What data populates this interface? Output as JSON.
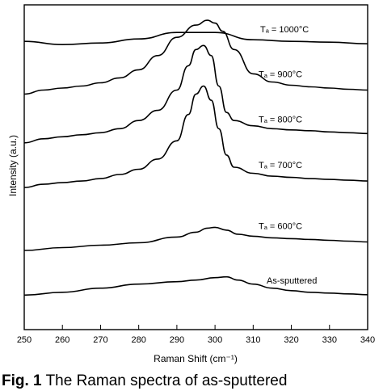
{
  "chart_data": {
    "type": "line",
    "xlabel": "Raman Shift (cm⁻¹)",
    "ylabel": "Intensity (a.u.)",
    "xlim": [
      250,
      340
    ],
    "xticks": [
      250,
      260,
      270,
      280,
      290,
      300,
      310,
      320,
      330,
      340
    ],
    "grid": false,
    "series": [
      {
        "name": "Tₐ = 1000°C",
        "x": [
          250,
          260,
          270,
          280,
          290,
          300,
          310,
          320,
          330,
          340
        ],
        "y": [
          7.7,
          7.62,
          7.66,
          7.76,
          7.92,
          7.92,
          7.74,
          7.7,
          7.68,
          7.64
        ]
      },
      {
        "name": "Tₐ = 900°C",
        "x": [
          250,
          255,
          260,
          265,
          270,
          275,
          280,
          285,
          290,
          295,
          298,
          300,
          302,
          305,
          310,
          315,
          320,
          325,
          330,
          335,
          340
        ],
        "y": [
          6.4,
          6.5,
          6.55,
          6.6,
          6.68,
          6.8,
          7.0,
          7.35,
          7.8,
          8.1,
          8.22,
          8.15,
          7.95,
          7.5,
          6.9,
          6.7,
          6.62,
          6.58,
          6.55,
          6.52,
          6.5
        ]
      },
      {
        "name": "Tₐ = 800°C",
        "x": [
          250,
          255,
          260,
          265,
          270,
          275,
          280,
          285,
          290,
          293,
          295,
          297,
          299,
          301,
          303,
          305,
          310,
          315,
          320,
          325,
          330,
          335,
          340
        ],
        "y": [
          5.2,
          5.3,
          5.35,
          5.4,
          5.45,
          5.55,
          5.75,
          6.0,
          6.5,
          7.1,
          7.5,
          7.6,
          7.35,
          6.6,
          5.95,
          5.75,
          5.62,
          5.55,
          5.52,
          5.5,
          5.47,
          5.45,
          5.43
        ]
      },
      {
        "name": "Tₐ = 700°C",
        "x": [
          250,
          255,
          260,
          265,
          270,
          275,
          280,
          285,
          290,
          293,
          295,
          297,
          299,
          301,
          303,
          305,
          310,
          315,
          320,
          325,
          330,
          335,
          340
        ],
        "y": [
          4.1,
          4.18,
          4.22,
          4.26,
          4.32,
          4.42,
          4.55,
          4.8,
          5.25,
          5.9,
          6.4,
          6.6,
          6.25,
          5.55,
          4.9,
          4.6,
          4.45,
          4.38,
          4.35,
          4.32,
          4.3,
          4.28,
          4.26
        ]
      },
      {
        "name": "Tₐ = 600°C",
        "x": [
          250,
          260,
          270,
          280,
          290,
          295,
          298,
          300,
          303,
          306,
          310,
          315,
          320,
          325,
          330,
          335,
          340
        ],
        "y": [
          2.55,
          2.62,
          2.68,
          2.74,
          2.88,
          3.0,
          3.1,
          3.12,
          3.05,
          2.95,
          2.9,
          2.86,
          2.84,
          2.82,
          2.8,
          2.78,
          2.76
        ]
      },
      {
        "name": "As-sputtered",
        "x": [
          250,
          260,
          270,
          280,
          290,
          295,
          300,
          303,
          306,
          310,
          315,
          320,
          325,
          330,
          335,
          340
        ],
        "y": [
          1.45,
          1.52,
          1.62,
          1.72,
          1.78,
          1.82,
          1.88,
          1.9,
          1.82,
          1.72,
          1.62,
          1.56,
          1.52,
          1.5,
          1.48,
          1.46
        ]
      }
    ]
  },
  "caption": {
    "fig": "Fig. 1",
    "text": "The Raman spectra of as-sputtered"
  }
}
